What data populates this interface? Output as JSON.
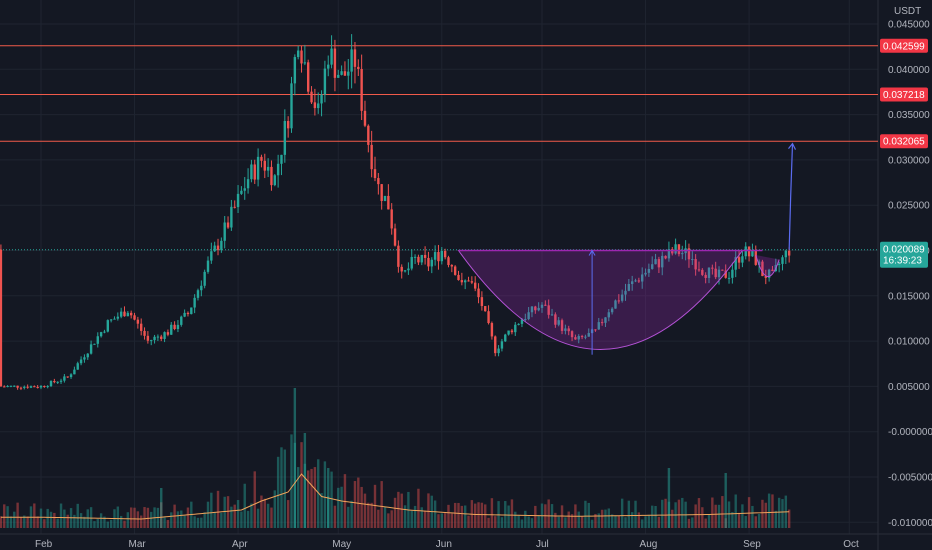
{
  "chart_data": {
    "type": "candlestick",
    "currency": "USDT",
    "y_ticks": [
      "0.045000",
      "0.040000",
      "0.035000",
      "0.030000",
      "0.025000",
      "0.020000",
      "0.015000",
      "0.010000",
      "0.005000",
      "-0.000000",
      "-0.005000",
      "-0.010000"
    ],
    "x_labels": [
      "Feb",
      "Mar",
      "Apr",
      "May",
      "Jun",
      "Jul",
      "Aug",
      "Sep",
      "Oct"
    ],
    "ylim": [
      -0.012,
      0.047
    ],
    "resistance_levels": [
      0.042599,
      0.037218,
      0.032065
    ],
    "resistance_labels": [
      "0.042599",
      "0.037218",
      "0.032065"
    ],
    "current_price": 0.020089,
    "current_price_label": "0.020089",
    "countdown": "16:39:23",
    "pattern": "cup and handle",
    "target_price": 0.0318,
    "price_path": {
      "days": [
        0,
        8,
        14,
        20,
        26,
        32,
        38,
        44,
        50,
        56,
        62,
        66,
        70,
        74,
        77,
        80,
        83,
        86,
        90,
        94,
        98,
        101,
        104,
        108,
        112,
        116,
        120,
        124,
        126,
        128,
        132,
        136,
        140,
        144,
        150,
        156,
        160,
        166,
        170,
        176,
        182,
        186,
        190,
        194,
        198,
        202,
        206,
        210,
        214,
        216,
        219,
        221,
        224
      ],
      "close": [
        0.005,
        0.006,
        0.009,
        0.012,
        0.0135,
        0.01,
        0.011,
        0.013,
        0.0185,
        0.023,
        0.028,
        0.03,
        0.028,
        0.035,
        0.044,
        0.039,
        0.035,
        0.042,
        0.039,
        0.041,
        0.032,
        0.027,
        0.025,
        0.017,
        0.019,
        0.0185,
        0.02,
        0.018,
        0.016,
        0.017,
        0.014,
        0.009,
        0.011,
        0.0125,
        0.014,
        0.0115,
        0.01,
        0.011,
        0.0135,
        0.016,
        0.018,
        0.019,
        0.02,
        0.0195,
        0.018,
        0.017,
        0.0175,
        0.02,
        0.019,
        0.0175,
        0.017,
        0.0185,
        0.0201
      ]
    },
    "volume_profile": {
      "days": [
        0,
        30,
        60,
        66,
        74,
        78,
        84,
        90,
        100,
        110,
        130,
        160,
        200,
        224
      ],
      "value": [
        1.2,
        1.0,
        2.0,
        3.0,
        4.0,
        6.0,
        3.5,
        3.0,
        2.5,
        2.0,
        1.5,
        1.3,
        1.5,
        1.8
      ]
    }
  }
}
